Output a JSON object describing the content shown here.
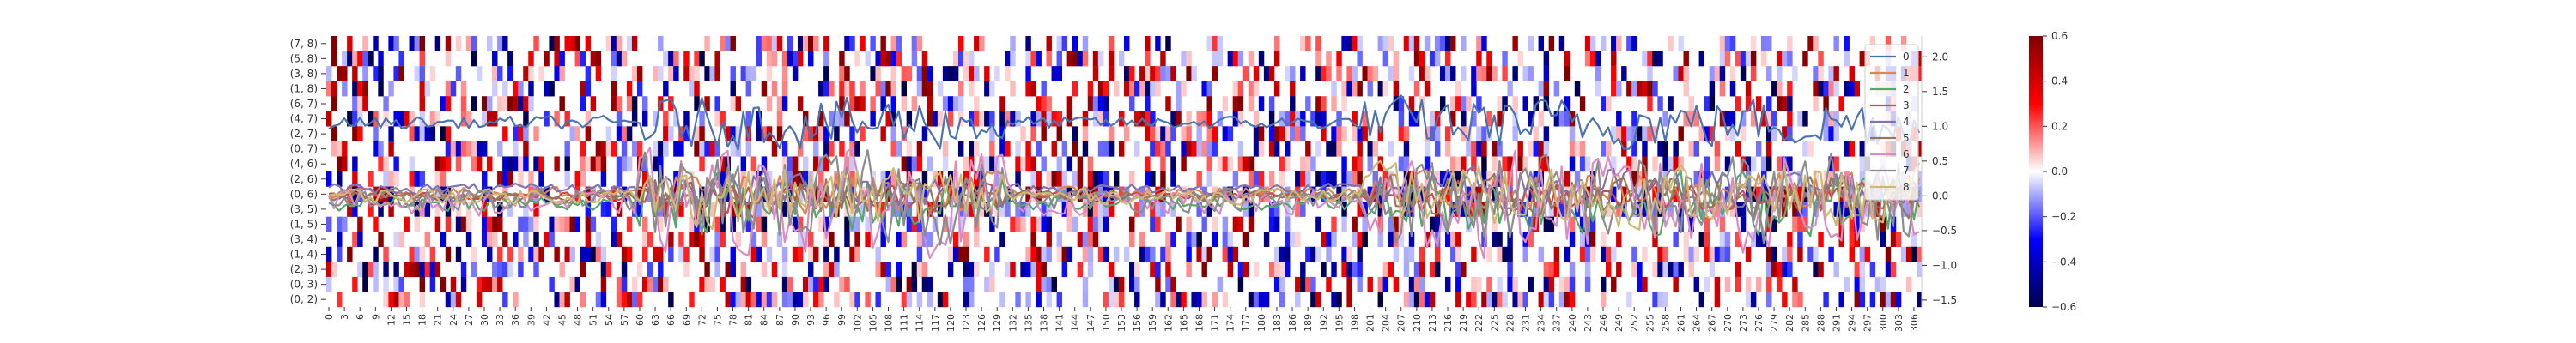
{
  "chart_data": [
    {
      "type": "heatmap",
      "row_labels": [
        "(7, 8)",
        "(5, 8)",
        "(3, 8)",
        "(1, 8)",
        "(6, 7)",
        "(4, 7)",
        "(2, 7)",
        "(0, 7)",
        "(4, 6)",
        "(2, 6)",
        "(0, 6)",
        "(3, 5)",
        "(1, 5)",
        "(3, 4)",
        "(1, 4)",
        "(2, 3)",
        "(0, 3)",
        "(0, 2)"
      ],
      "x_ticks": [
        "0",
        "3",
        "6",
        "9",
        "12",
        "15",
        "18",
        "21",
        "24",
        "27",
        "30",
        "33",
        "36",
        "39",
        "42",
        "45",
        "48",
        "51",
        "54",
        "57",
        "60",
        "63",
        "66",
        "69",
        "72",
        "75",
        "78",
        "81",
        "84",
        "87",
        "90",
        "93",
        "96",
        "99",
        "102",
        "105",
        "108",
        "111",
        "114",
        "117",
        "120",
        "123",
        "126",
        "129",
        "132",
        "135",
        "138",
        "141",
        "144",
        "147",
        "150",
        "153",
        "156",
        "159",
        "162",
        "165",
        "168",
        "171",
        "174",
        "177",
        "180",
        "183",
        "186",
        "189",
        "192",
        "195",
        "198",
        "201",
        "204",
        "207",
        "210",
        "213",
        "216",
        "219",
        "222",
        "225",
        "228",
        "231",
        "234",
        "237",
        "240",
        "243",
        "246",
        "249",
        "252",
        "255",
        "258",
        "261",
        "264",
        "267",
        "270",
        "273",
        "276",
        "279",
        "282",
        "285",
        "288",
        "291",
        "294",
        "297",
        "300",
        "303",
        "306"
      ],
      "n_columns": 308,
      "cell_density": 0.42,
      "colorscale": "seismic",
      "vmin": -0.6,
      "vmax": 0.6,
      "colorbar_ticks": [
        "0.6",
        "0.4",
        "0.2",
        "0.0",
        "−0.2",
        "−0.4",
        "−0.6"
      ]
    },
    {
      "type": "line",
      "ylim": [
        -1.6,
        2.3
      ],
      "y_ticks": [
        "2.0",
        "1.5",
        "1.0",
        "0.5",
        "0.0",
        "−0.5",
        "−1.0",
        "−1.5"
      ],
      "series": [
        {
          "name": "0",
          "color": "#4c72b0",
          "base": 1.05,
          "amp": 0.25
        },
        {
          "name": "1",
          "color": "#dd8452",
          "base": 0.05,
          "amp": 0.2
        },
        {
          "name": "2",
          "color": "#55a868",
          "base": -0.1,
          "amp": 0.3
        },
        {
          "name": "3",
          "color": "#c44e52",
          "base": 0.0,
          "amp": 0.15
        },
        {
          "name": "4",
          "color": "#8172b3",
          "base": 0.1,
          "amp": 0.2
        },
        {
          "name": "5",
          "color": "#937860",
          "base": 0.0,
          "amp": 0.2
        },
        {
          "name": "6",
          "color": "#da8bc3",
          "base": -0.1,
          "amp": 0.5
        },
        {
          "name": "7",
          "color": "#8c8c8c",
          "base": -0.05,
          "amp": 0.45
        },
        {
          "name": "8",
          "color": "#ccb974",
          "base": 0.0,
          "amp": 0.3
        }
      ]
    }
  ]
}
